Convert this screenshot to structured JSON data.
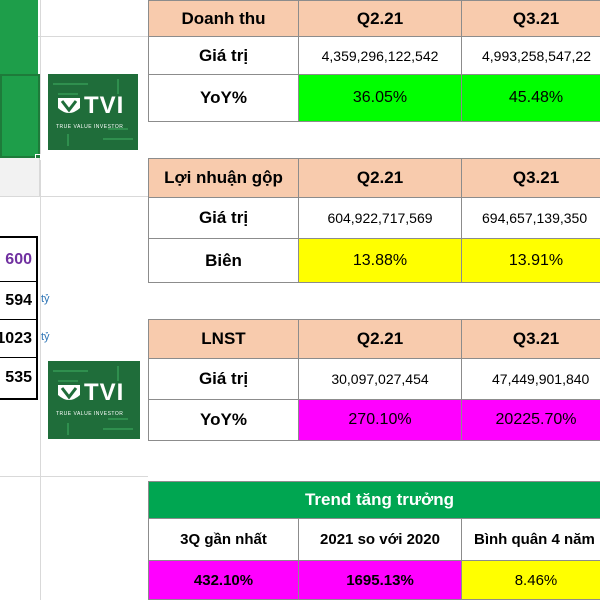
{
  "colors": {
    "header": "#f8cbad",
    "green": "#00ff00",
    "yellow": "#ffff00",
    "magenta": "#ff00ff",
    "trend_header": "#00a651",
    "logo_bg": "#1f6d3a"
  },
  "logo": {
    "brand": "TVI",
    "tagline": "TRUE VALUE INVESTOR",
    "icon": "tvi-shield-logo-icon"
  },
  "left_panel": {
    "numbers": [
      "600",
      "594",
      "1023",
      "535"
    ],
    "unit": "tỷ"
  },
  "revenue_table": {
    "title": "Doanh thu",
    "cols": [
      "Q2.21",
      "Q3.21"
    ],
    "rows": [
      {
        "label": "Giá trị",
        "values": [
          "4,359,296,122,542",
          "4,993,258,547,22"
        ]
      },
      {
        "label": "YoY%",
        "values": [
          "36.05%",
          "45.48%"
        ]
      }
    ]
  },
  "gross_table": {
    "title": "Lợi nhuận gộp",
    "cols": [
      "Q2.21",
      "Q3.21"
    ],
    "rows": [
      {
        "label": "Giá trị",
        "values": [
          "604,922,717,569",
          "694,657,139,350"
        ]
      },
      {
        "label": "Biên",
        "values": [
          "13.88%",
          "13.91%"
        ]
      }
    ]
  },
  "net_table": {
    "title": "LNST",
    "cols": [
      "Q2.21",
      "Q3.21"
    ],
    "rows": [
      {
        "label": "Giá trị",
        "values": [
          "30,097,027,454",
          "47,449,901,840"
        ]
      },
      {
        "label": "YoY%",
        "values": [
          "270.10%",
          "20225.70%"
        ]
      }
    ]
  },
  "trend_table": {
    "title": "Trend tăng trưởng",
    "cols": [
      "3Q gần nhất",
      "2021 so với 2020",
      "Bình quân 4 năm"
    ],
    "values": [
      "432.10%",
      "1695.13%",
      "8.46%"
    ]
  }
}
